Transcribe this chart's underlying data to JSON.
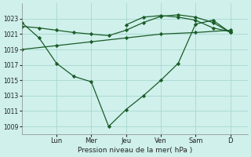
{
  "background_color": "#cff0eb",
  "grid_color": "#a8d8d0",
  "line_color": "#1a5c28",
  "title": "Pression niveau de la mer( hPa )",
  "ylim": [
    1008.0,
    1025.0
  ],
  "yticks": [
    1009,
    1011,
    1013,
    1015,
    1017,
    1019,
    1021,
    1023
  ],
  "day_labels": [
    "Lun",
    "Mer",
    "Jeu",
    "Ven",
    "Sam",
    "D"
  ],
  "day_positions": [
    2,
    4,
    6,
    8,
    10,
    12
  ],
  "xlim": [
    0,
    13
  ],
  "line1_x": [
    0,
    1,
    2,
    3,
    4,
    5,
    6,
    7,
    8,
    9,
    10,
    11,
    12
  ],
  "line1_y": [
    1022.5,
    1020.5,
    1017.2,
    1015.5,
    1014.8,
    1009.0,
    1011.2,
    1013.0,
    1015.0,
    1017.2,
    1022.3,
    1022.8,
    1021.2
  ],
  "line2_x": [
    0,
    1,
    2,
    3,
    4,
    5,
    6,
    7,
    8,
    9,
    10,
    11,
    12
  ],
  "line2_y": [
    1022.0,
    1021.8,
    1021.5,
    1021.2,
    1021.0,
    1020.8,
    1021.5,
    1022.5,
    1023.3,
    1023.5,
    1023.2,
    1022.5,
    1021.2
  ],
  "line3_x": [
    0,
    2,
    4,
    6,
    8,
    10,
    12
  ],
  "line3_y": [
    1019.0,
    1019.5,
    1020.0,
    1020.5,
    1021.0,
    1021.2,
    1021.5
  ],
  "line4_x": [
    6,
    7,
    8,
    9,
    10,
    11,
    12
  ],
  "line4_y": [
    1022.2,
    1023.2,
    1023.4,
    1023.2,
    1022.8,
    1021.8,
    1021.3
  ]
}
